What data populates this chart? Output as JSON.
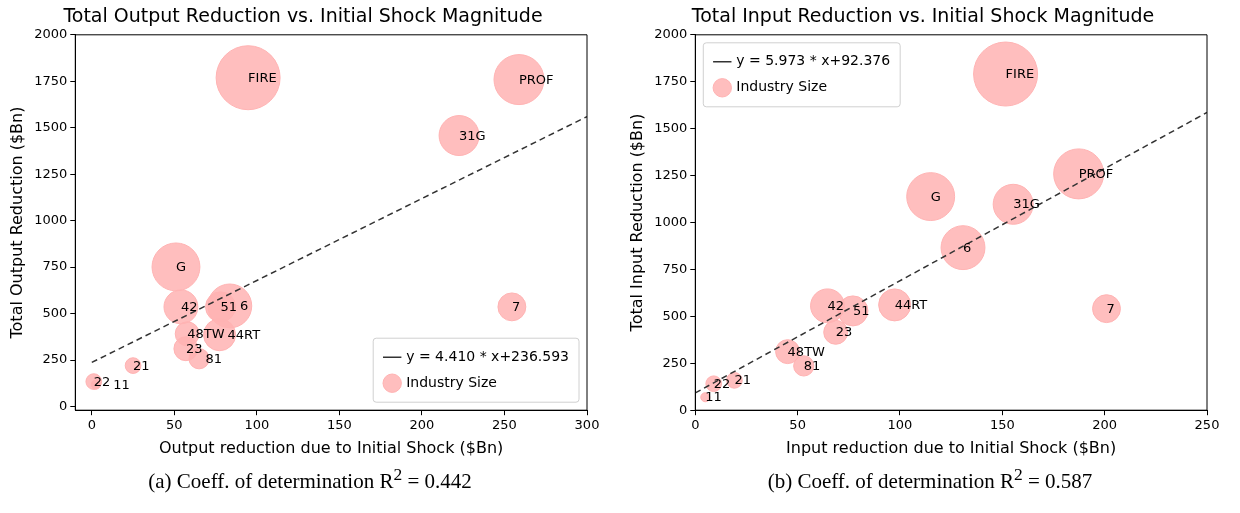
{
  "chart_data": [
    {
      "type": "bubble",
      "title": "Total Output Reduction vs. Initial Shock Magnitude",
      "xlabel": "Output reduction due to Initial Shock ($Bn)",
      "ylabel": "Total Output Reduction ($Bn)",
      "xlim": [
        -10,
        300
      ],
      "xticks": [
        0,
        50,
        100,
        150,
        200,
        250,
        300
      ],
      "ylim": [
        -20,
        2000
      ],
      "yticks": [
        0,
        250,
        500,
        750,
        1000,
        1250,
        1500,
        1750,
        2000
      ],
      "legend": "bottom right",
      "marker": "circle",
      "series": [
        {
          "name": "Industry Size",
          "color": "#ffb3b3",
          "x": [
            94.7,
            258.8,
            222.5,
            51,
            54,
            78,
            83.6,
            254.5,
            57.8,
            77.4,
            57,
            65,
            25,
            1.2,
            2.5
          ],
          "values": [
            1769,
            1759,
            1458,
            751,
            536,
            536,
            541,
            536,
            391,
            386,
            311,
            257,
            220,
            134,
            118
          ],
          "sizes": [
            1,
            0.61,
            0.39,
            0.56,
            0.28,
            0.22,
            0.47,
            0.19,
            0.14,
            0.25,
            0.14,
            0.1,
            0.06,
            0.06,
            0.02
          ]
        },
        {
          "name": "y = 4.410 * x+236.593",
          "type": "line",
          "color": "#333333",
          "line_style": "dashed",
          "marker": "none",
          "x": [
            0,
            300
          ],
          "values": [
            237,
            1560
          ]
        }
      ],
      "annotations": [
        {
          "text": "FIRE",
          "x": 94.7,
          "y": 1769
        },
        {
          "text": "PROF",
          "x": 258.8,
          "y": 1759
        },
        {
          "text": "31G",
          "x": 222.5,
          "y": 1458
        },
        {
          "text": "G",
          "x": 51,
          "y": 751
        },
        {
          "text": "42",
          "x": 54,
          "y": 536
        },
        {
          "text": "51",
          "x": 78,
          "y": 536
        },
        {
          "text": "6",
          "x": 83.6,
          "y": 541
        },
        {
          "text": "7",
          "x": 254.5,
          "y": 536
        },
        {
          "text": "48TW",
          "x": 57.8,
          "y": 391
        },
        {
          "text": "44RT",
          "x": 77.4,
          "y": 386
        },
        {
          "text": "23",
          "x": 57,
          "y": 311
        },
        {
          "text": "81",
          "x": 65,
          "y": 257
        },
        {
          "text": "21",
          "x": 25,
          "y": 220
        },
        {
          "text": "22",
          "x": 1.2,
          "y": 134
        },
        {
          "text": "11",
          "x": 2.5,
          "y": 118
        },
        "(a) Coeff. of determination R$^{2}$ = 0.442"
      ]
    },
    {
      "type": "bubble",
      "title": "Total Input Reduction vs. Initial Shock Magnitude",
      "xlabel": "Input reduction due to Initial Shock ($Bn)",
      "ylabel": "Total Input Reduction ($Bn)",
      "xlim": [
        0,
        250
      ],
      "xticks": [
        0,
        50,
        100,
        150,
        200,
        250
      ],
      "ylim": [
        0,
        2000
      ],
      "yticks": [
        0,
        250,
        500,
        750,
        1000,
        1250,
        1500,
        1750,
        2000
      ],
      "legend": "top left",
      "marker": "circle",
      "series": [
        {
          "name": "y = 5.973 * x+92.376",
          "type": "line",
          "color": "#333333",
          "line_style": "dashed",
          "marker": "none",
          "x": [
            0,
            250
          ],
          "values": [
            92,
            1586
          ]
        },
        {
          "name": "Industry Size",
          "color": "#ffb3b3",
          "x": [
            151.6,
            187.3,
            155.3,
            115,
            64.6,
            77,
            130.8,
            200.9,
            45.1,
            97.4,
            68.6,
            53,
            19.1,
            9,
            4.9
          ],
          "values": [
            1791,
            1259,
            1097,
            1138,
            556,
            529,
            866,
            541,
            312,
            561,
            415,
            236,
            159,
            141,
            69
          ],
          "sizes": [
            1,
            0.61,
            0.39,
            0.56,
            0.28,
            0.22,
            0.47,
            0.19,
            0.14,
            0.25,
            0.14,
            0.1,
            0.06,
            0.06,
            0.02
          ]
        }
      ],
      "annotations": [
        {
          "text": "FIRE",
          "x": 151.6,
          "y": 1791
        },
        {
          "text": "PROF",
          "x": 187.3,
          "y": 1259
        },
        {
          "text": "31G",
          "x": 155.3,
          "y": 1097
        },
        {
          "text": "G",
          "x": 115,
          "y": 1138
        },
        {
          "text": "42",
          "x": 64.6,
          "y": 556
        },
        {
          "text": "51",
          "x": 77,
          "y": 529
        },
        {
          "text": "6",
          "x": 130.8,
          "y": 866
        },
        {
          "text": "7",
          "x": 200.9,
          "y": 541
        },
        {
          "text": "48TW",
          "x": 45.1,
          "y": 312
        },
        {
          "text": "44RT",
          "x": 97.4,
          "y": 561
        },
        {
          "text": "23",
          "x": 68.6,
          "y": 415
        },
        {
          "text": "81",
          "x": 53,
          "y": 236
        },
        {
          "text": "21",
          "x": 19.1,
          "y": 159
        },
        {
          "text": "22",
          "x": 9,
          "y": 141
        },
        {
          "text": "11",
          "x": 4.9,
          "y": 69
        },
        "(b) Coeff. of determination R$^{2}$ = 0.587"
      ]
    }
  ]
}
